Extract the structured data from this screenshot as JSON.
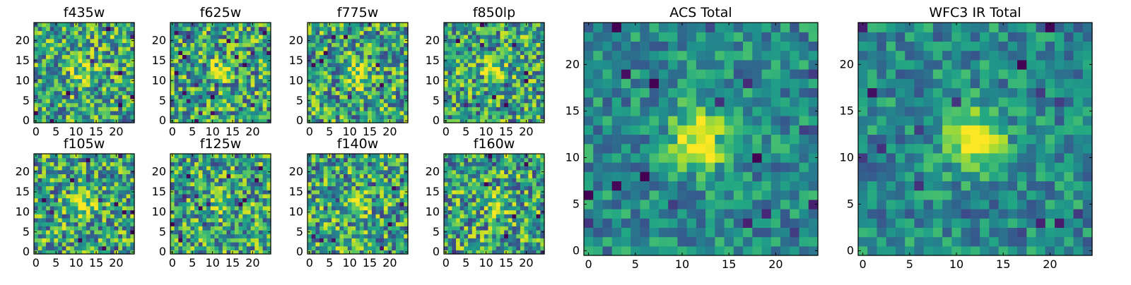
{
  "figure": {
    "colormap": "viridis",
    "background": "#ffffff"
  },
  "chart_data": [
    {
      "type": "heatmap",
      "title": "f435w",
      "grid": false,
      "xlim": [
        -0.5,
        24.5
      ],
      "ylim": [
        -0.5,
        24.5
      ],
      "xticks": [
        "0",
        "5",
        "10",
        "15",
        "20"
      ],
      "yticks": [
        "0",
        "5",
        "10",
        "15",
        "20"
      ],
      "description_of_values": "noisy normalized flux, peak near (12,12)",
      "peak": [
        12,
        12
      ],
      "value_range": [
        0,
        1
      ]
    },
    {
      "type": "heatmap",
      "title": "f625w",
      "grid": false,
      "xlim": [
        -0.5,
        24.5
      ],
      "ylim": [
        -0.5,
        24.5
      ],
      "xticks": [
        "0",
        "5",
        "10",
        "15",
        "20"
      ],
      "yticks": [
        "0",
        "5",
        "10",
        "15",
        "20"
      ],
      "peak": [
        12,
        12
      ],
      "value_range": [
        0,
        1
      ]
    },
    {
      "type": "heatmap",
      "title": "f775w",
      "grid": false,
      "xlim": [
        -0.5,
        24.5
      ],
      "ylim": [
        -0.5,
        24.5
      ],
      "xticks": [
        "0",
        "5",
        "10",
        "15",
        "20"
      ],
      "yticks": [
        "0",
        "5",
        "10",
        "15",
        "20"
      ],
      "peak": [
        12,
        12
      ],
      "value_range": [
        0,
        1
      ]
    },
    {
      "type": "heatmap",
      "title": "f850lp",
      "grid": false,
      "xlim": [
        -0.5,
        24.5
      ],
      "ylim": [
        -0.5,
        24.5
      ],
      "xticks": [
        "0",
        "5",
        "10",
        "15",
        "20"
      ],
      "yticks": [
        "0",
        "5",
        "10",
        "15",
        "20"
      ],
      "peak": [
        12,
        12
      ],
      "value_range": [
        0,
        1
      ]
    },
    {
      "type": "heatmap",
      "title": "f105w",
      "grid": false,
      "xlim": [
        -0.5,
        24.5
      ],
      "ylim": [
        -0.5,
        24.5
      ],
      "xticks": [
        "0",
        "5",
        "10",
        "15",
        "20"
      ],
      "yticks": [
        "0",
        "5",
        "10",
        "15",
        "20"
      ],
      "peak": [
        12,
        12
      ],
      "value_range": [
        0,
        1
      ]
    },
    {
      "type": "heatmap",
      "title": "f125w",
      "grid": false,
      "xlim": [
        -0.5,
        24.5
      ],
      "ylim": [
        -0.5,
        24.5
      ],
      "xticks": [
        "0",
        "5",
        "10",
        "15",
        "20"
      ],
      "yticks": [
        "0",
        "5",
        "10",
        "15",
        "20"
      ],
      "peak": [
        12,
        12
      ],
      "value_range": [
        0,
        1
      ]
    },
    {
      "type": "heatmap",
      "title": "f140w",
      "grid": false,
      "xlim": [
        -0.5,
        24.5
      ],
      "ylim": [
        -0.5,
        24.5
      ],
      "xticks": [
        "0",
        "5",
        "10",
        "15",
        "20"
      ],
      "yticks": [
        "0",
        "5",
        "10",
        "15",
        "20"
      ],
      "peak": [
        12,
        12
      ],
      "value_range": [
        0,
        1
      ]
    },
    {
      "type": "heatmap",
      "title": "f160w",
      "grid": false,
      "xlim": [
        -0.5,
        24.5
      ],
      "ylim": [
        -0.5,
        24.5
      ],
      "xticks": [
        "0",
        "5",
        "10",
        "15",
        "20"
      ],
      "yticks": [
        "0",
        "5",
        "10",
        "15",
        "20"
      ],
      "peak": [
        13,
        12
      ],
      "value_range": [
        0,
        1
      ]
    },
    {
      "type": "heatmap",
      "title": "ACS Total",
      "grid": false,
      "xlim": [
        -0.5,
        24.5
      ],
      "ylim": [
        -0.5,
        24.5
      ],
      "xticks": [
        "0",
        "5",
        "10",
        "15",
        "20"
      ],
      "yticks": [
        "0",
        "5",
        "10",
        "15",
        "20"
      ],
      "peak": [
        12,
        12
      ],
      "value_range": [
        0,
        1
      ]
    },
    {
      "type": "heatmap",
      "title": "WFC3 IR Total",
      "grid": false,
      "xlim": [
        -0.5,
        24.5
      ],
      "ylim": [
        -0.5,
        24.5
      ],
      "xticks": [
        "0",
        "5",
        "10",
        "15",
        "20"
      ],
      "yticks": [
        "0",
        "5",
        "10",
        "15",
        "20"
      ],
      "peak": [
        12,
        12
      ],
      "value_range": [
        0,
        1
      ]
    }
  ]
}
